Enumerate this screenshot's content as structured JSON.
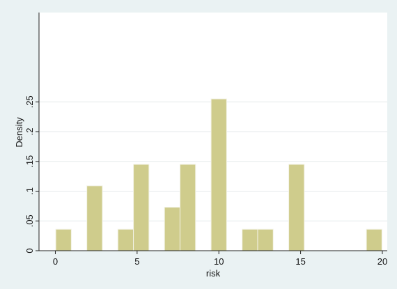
{
  "chart_data": {
    "type": "bar",
    "title": "",
    "xlabel": "risk",
    "ylabel": "Density",
    "xlim": [
      -1,
      20.3
    ],
    "ylim": [
      0,
      0.4
    ],
    "grid": true,
    "legend": "none",
    "x_ticks": [
      0,
      5,
      10,
      15,
      20
    ],
    "x_tick_labels": [
      "0",
      "5",
      "10",
      "15",
      "20"
    ],
    "y_ticks": [
      0,
      0.05,
      0.1,
      0.15,
      0.2,
      0.25
    ],
    "y_tick_labels": [
      "0",
      ".05",
      ".1",
      ".15",
      ".2",
      ".25"
    ],
    "bin_width": 0.95,
    "bars": [
      {
        "x": 0.5,
        "value": 0.036
      },
      {
        "x": 2.4,
        "value": 0.109
      },
      {
        "x": 4.3,
        "value": 0.036
      },
      {
        "x": 5.25,
        "value": 0.145
      },
      {
        "x": 7.15,
        "value": 0.073
      },
      {
        "x": 8.1,
        "value": 0.145
      },
      {
        "x": 10.0,
        "value": 0.255
      },
      {
        "x": 11.9,
        "value": 0.036
      },
      {
        "x": 12.85,
        "value": 0.036
      },
      {
        "x": 14.75,
        "value": 0.145
      },
      {
        "x": 19.5,
        "value": 0.036
      }
    ],
    "colors": {
      "bar_fill": "#cfcc8c",
      "bar_stroke": "#f3f3e6",
      "plot_bg": "#ffffff",
      "outer_bg": "#eaf2f3",
      "grid": "#e6eaeb",
      "axis": "#222222"
    }
  }
}
